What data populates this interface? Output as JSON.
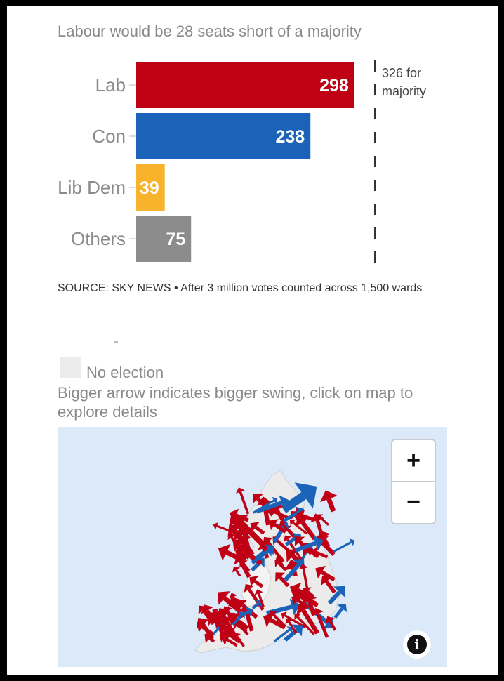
{
  "chart_data": {
    "type": "bar",
    "orientation": "horizontal",
    "title": "Labour would be 28 seats short of a majority",
    "categories": [
      "Lab",
      "Con",
      "Lib Dem",
      "Others"
    ],
    "values": [
      298,
      238,
      39,
      75
    ],
    "colors": [
      "#c00014",
      "#1a63b8",
      "#f7b32b",
      "#8c8c8c"
    ],
    "reference_line": {
      "value": 326,
      "label_line1": "326 for",
      "label_line2": "majority"
    },
    "xlim": [
      0,
      326
    ],
    "grid": false,
    "legend": "none"
  },
  "source": "SOURCE: SKY NEWS • After 3 million votes counted across 1,500 wards",
  "map": {
    "legend_no_election": "No election",
    "caption": "Bigger arrow indicates bigger swing, click on map to explore details",
    "zoom_in_label": "+",
    "zoom_out_label": "−",
    "info_label": "i",
    "colors": {
      "water": "#dbe9f8",
      "land": "#ebebeb",
      "labour_arrow": "#c00014",
      "conservative_arrow": "#1a63b8"
    }
  }
}
